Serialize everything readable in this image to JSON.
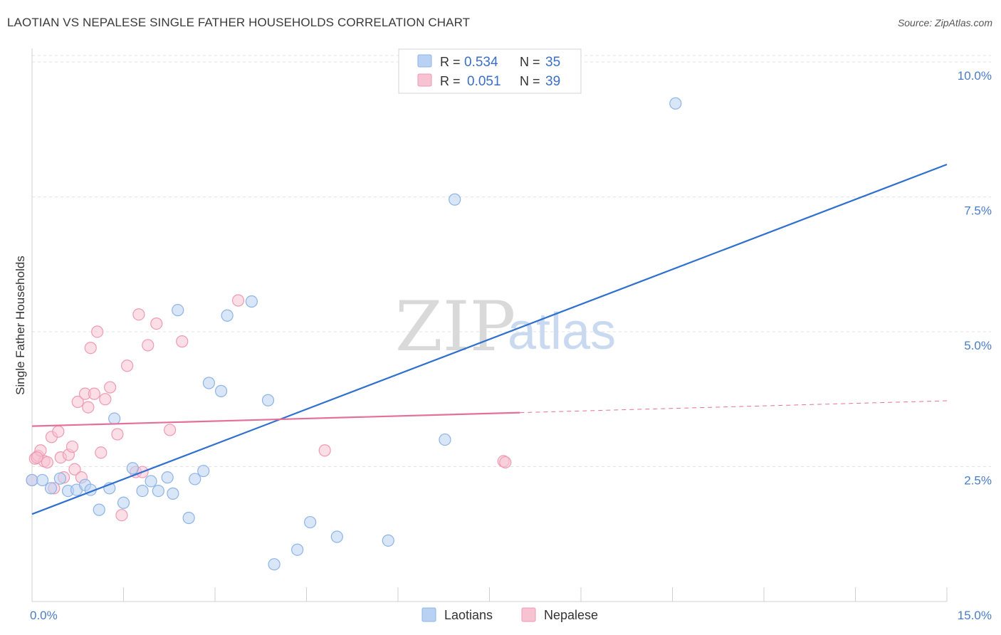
{
  "title": "LAOTIAN VS NEPALESE SINGLE FATHER HOUSEHOLDS CORRELATION CHART",
  "source": "Source: ZipAtlas.com",
  "watermark": {
    "zip": "ZIP",
    "atlas": "atlas"
  },
  "colors": {
    "laotian_fill": "#b9d2f3",
    "laotian_stroke": "#8db4e6",
    "laotian_line": "#2f6fcf",
    "nepalese_fill": "#f7c3d2",
    "nepalese_stroke": "#ee9ab4",
    "nepalese_line": "#e4709a",
    "grid": "#e3e3e3",
    "tick_text": "#4a7cc7"
  },
  "stats": [
    {
      "r_label": "R =",
      "r_value": "0.534",
      "n_label": "N =",
      "n_value": "35"
    },
    {
      "r_label": "R =",
      "r_value": "0.051",
      "n_label": "N =",
      "n_value": "39"
    }
  ],
  "legend": [
    "Laotians",
    "Nepalese"
  ],
  "chart_data": {
    "type": "scatter",
    "title": "LAOTIAN VS NEPALESE SINGLE FATHER HOUSEHOLDS CORRELATION CHART",
    "xlabel": "",
    "ylabel": "Single Father Households",
    "xlim": [
      0,
      15
    ],
    "ylim": [
      0,
      10.25
    ],
    "x_tick_labels": [
      "0.0%",
      "15.0%"
    ],
    "y_ticks": [
      2.5,
      5.0,
      7.5,
      10.0
    ],
    "y_tick_labels": [
      "2.5%",
      "5.0%",
      "7.5%",
      "10.0%"
    ],
    "grid": true,
    "legend_position": "bottom-center",
    "series": [
      {
        "name": "Laotians",
        "r": 0.534,
        "n": 35,
        "trend": {
          "x": [
            0,
            15
          ],
          "y": [
            1.62,
            8.1
          ]
        },
        "points": [
          [
            0.0,
            2.25
          ],
          [
            0.17,
            2.25
          ],
          [
            0.31,
            2.1
          ],
          [
            0.46,
            2.28
          ],
          [
            0.59,
            2.05
          ],
          [
            0.73,
            2.07
          ],
          [
            0.87,
            2.16
          ],
          [
            0.96,
            2.07
          ],
          [
            1.1,
            1.7
          ],
          [
            1.27,
            2.1
          ],
          [
            1.35,
            3.39
          ],
          [
            1.5,
            1.83
          ],
          [
            1.65,
            2.47
          ],
          [
            1.81,
            2.05
          ],
          [
            1.95,
            2.23
          ],
          [
            2.07,
            2.05
          ],
          [
            2.22,
            2.3
          ],
          [
            2.31,
            2.0
          ],
          [
            2.39,
            5.4
          ],
          [
            2.57,
            1.55
          ],
          [
            2.67,
            2.27
          ],
          [
            2.81,
            2.42
          ],
          [
            2.9,
            4.05
          ],
          [
            3.1,
            3.9
          ],
          [
            3.2,
            5.3
          ],
          [
            3.6,
            5.56
          ],
          [
            3.87,
            3.73
          ],
          [
            3.97,
            0.69
          ],
          [
            4.35,
            0.96
          ],
          [
            4.56,
            1.47
          ],
          [
            5.0,
            1.2
          ],
          [
            5.84,
            1.13
          ],
          [
            6.77,
            3.0
          ],
          [
            6.93,
            7.45
          ],
          [
            10.55,
            9.23
          ]
        ]
      },
      {
        "name": "Nepalese",
        "r": 0.051,
        "n": 39,
        "trend": {
          "x": [
            0,
            15
          ],
          "y": [
            3.25,
            3.72
          ],
          "solid_until_x": 8.0
        },
        "points": [
          [
            0.0,
            2.25
          ],
          [
            0.05,
            2.65
          ],
          [
            0.1,
            2.7
          ],
          [
            0.14,
            2.8
          ],
          [
            0.2,
            2.6
          ],
          [
            0.25,
            2.58
          ],
          [
            0.32,
            3.05
          ],
          [
            0.36,
            2.1
          ],
          [
            0.43,
            3.15
          ],
          [
            0.47,
            2.67
          ],
          [
            0.52,
            2.3
          ],
          [
            0.6,
            2.72
          ],
          [
            0.66,
            2.87
          ],
          [
            0.7,
            2.45
          ],
          [
            0.75,
            3.7
          ],
          [
            0.81,
            2.3
          ],
          [
            0.87,
            3.85
          ],
          [
            0.92,
            3.6
          ],
          [
            0.96,
            4.7
          ],
          [
            1.02,
            3.85
          ],
          [
            1.07,
            5.0
          ],
          [
            1.13,
            2.76
          ],
          [
            1.2,
            3.75
          ],
          [
            1.28,
            3.97
          ],
          [
            1.4,
            3.1
          ],
          [
            1.47,
            1.6
          ],
          [
            1.56,
            4.37
          ],
          [
            1.7,
            2.4
          ],
          [
            1.75,
            5.32
          ],
          [
            1.81,
            2.4
          ],
          [
            1.9,
            4.75
          ],
          [
            2.04,
            5.15
          ],
          [
            2.26,
            3.18
          ],
          [
            2.46,
            4.82
          ],
          [
            3.38,
            5.58
          ],
          [
            4.8,
            2.8
          ],
          [
            7.73,
            2.6
          ],
          [
            7.76,
            2.58
          ],
          [
            0.08,
            2.67
          ]
        ]
      }
    ]
  }
}
